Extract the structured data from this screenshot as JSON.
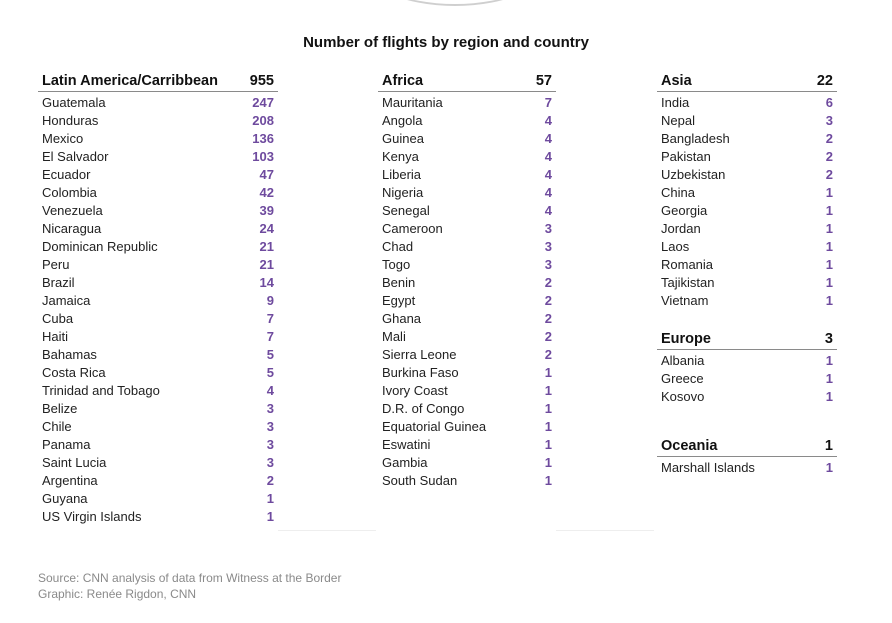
{
  "chart_data": {
    "type": "table",
    "title": "Number of flights by region and country",
    "regions": [
      {
        "name": "Latin America/Carribbean",
        "total": "955",
        "rows": [
          {
            "country": "Guatemala",
            "count": "247"
          },
          {
            "country": "Honduras",
            "count": "208"
          },
          {
            "country": "Mexico",
            "count": "136"
          },
          {
            "country": "El Salvador",
            "count": "103"
          },
          {
            "country": "Ecuador",
            "count": "47"
          },
          {
            "country": "Colombia",
            "count": "42"
          },
          {
            "country": "Venezuela",
            "count": "39"
          },
          {
            "country": "Nicaragua",
            "count": "24"
          },
          {
            "country": "Dominican Republic",
            "count": "21"
          },
          {
            "country": "Peru",
            "count": "21"
          },
          {
            "country": "Brazil",
            "count": "14"
          },
          {
            "country": "Jamaica",
            "count": "9"
          },
          {
            "country": "Cuba",
            "count": "7"
          },
          {
            "country": "Haiti",
            "count": "7"
          },
          {
            "country": "Bahamas",
            "count": "5"
          },
          {
            "country": "Costa Rica",
            "count": "5"
          },
          {
            "country": "Trinidad and Tobago",
            "count": "4"
          },
          {
            "country": "Belize",
            "count": "3"
          },
          {
            "country": "Chile",
            "count": "3"
          },
          {
            "country": "Panama",
            "count": "3"
          },
          {
            "country": "Saint Lucia",
            "count": "3"
          },
          {
            "country": "Argentina",
            "count": "2"
          },
          {
            "country": "Guyana",
            "count": "1"
          },
          {
            "country": "US Virgin Islands",
            "count": "1"
          }
        ]
      },
      {
        "name": "Africa",
        "total": "57",
        "rows": [
          {
            "country": "Mauritania",
            "count": "7"
          },
          {
            "country": "Angola",
            "count": "4"
          },
          {
            "country": "Guinea",
            "count": "4"
          },
          {
            "country": "Kenya",
            "count": "4"
          },
          {
            "country": "Liberia",
            "count": "4"
          },
          {
            "country": "Nigeria",
            "count": "4"
          },
          {
            "country": "Senegal",
            "count": "4"
          },
          {
            "country": "Cameroon",
            "count": "3"
          },
          {
            "country": "Chad",
            "count": "3"
          },
          {
            "country": "Togo",
            "count": "3"
          },
          {
            "country": "Benin",
            "count": "2"
          },
          {
            "country": "Egypt",
            "count": "2"
          },
          {
            "country": "Ghana",
            "count": "2"
          },
          {
            "country": "Mali",
            "count": "2"
          },
          {
            "country": "Sierra Leone",
            "count": "2"
          },
          {
            "country": "Burkina Faso",
            "count": "1"
          },
          {
            "country": "Ivory Coast",
            "count": "1"
          },
          {
            "country": "D.R. of Congo",
            "count": "1"
          },
          {
            "country": "Equatorial Guinea",
            "count": "1"
          },
          {
            "country": "Eswatini",
            "count": "1"
          },
          {
            "country": "Gambia",
            "count": "1"
          },
          {
            "country": "South Sudan",
            "count": "1"
          }
        ]
      },
      {
        "name": "Asia",
        "total": "22",
        "rows": [
          {
            "country": "India",
            "count": "6"
          },
          {
            "country": "Nepal",
            "count": "3"
          },
          {
            "country": "Bangladesh",
            "count": "2"
          },
          {
            "country": "Pakistan",
            "count": "2"
          },
          {
            "country": "Uzbekistan",
            "count": "2"
          },
          {
            "country": "China",
            "count": "1"
          },
          {
            "country": "Georgia",
            "count": "1"
          },
          {
            "country": "Jordan",
            "count": "1"
          },
          {
            "country": "Laos",
            "count": "1"
          },
          {
            "country": "Romania",
            "count": "1"
          },
          {
            "country": "Tajikistan",
            "count": "1"
          },
          {
            "country": "Vietnam",
            "count": "1"
          }
        ]
      },
      {
        "name": "Europe",
        "total": "3",
        "rows": [
          {
            "country": "Albania",
            "count": "1"
          },
          {
            "country": "Greece",
            "count": "1"
          },
          {
            "country": "Kosovo",
            "count": "1"
          }
        ]
      },
      {
        "name": "Oceania",
        "total": "1",
        "rows": [
          {
            "country": "Marshall Islands",
            "count": "1"
          }
        ]
      }
    ]
  },
  "footer": {
    "source": "Source: CNN analysis of data from Witness at the Border",
    "credit": "Graphic: Renée Rigdon, CNN"
  },
  "colors": {
    "count": "#6e4a9e",
    "header_rule": "#8a8a8a",
    "footer": "#8a8a8a"
  }
}
